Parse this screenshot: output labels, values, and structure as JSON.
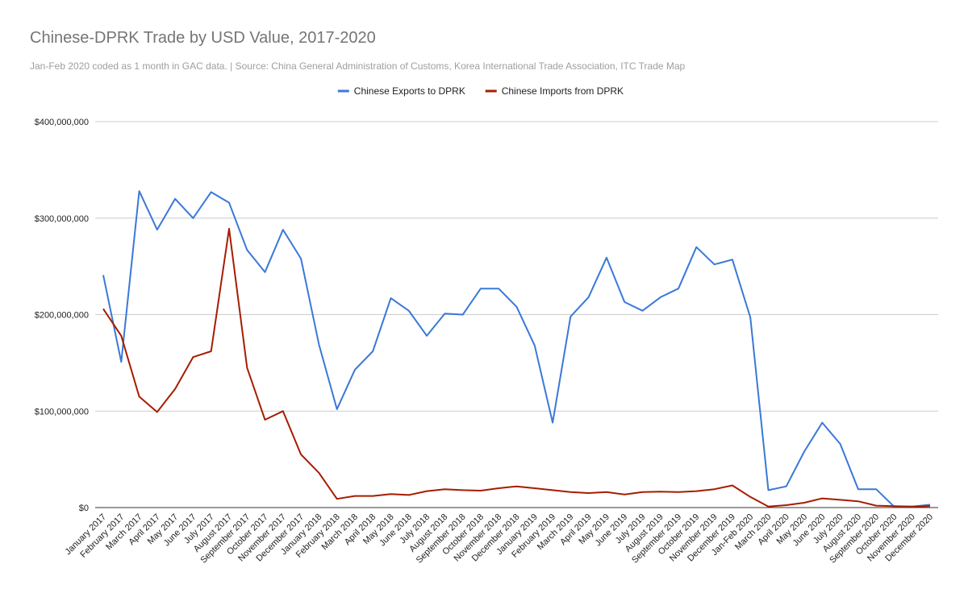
{
  "chart_data": {
    "type": "line",
    "title": "Chinese-DPRK Trade by USD Value, 2017-2020",
    "subtitle": "Jan-Feb 2020 coded as 1 month in GAC data. | Source: China General Administration of Customs, Korea International Trade Association, ITC Trade Map",
    "xlabel": "",
    "ylabel": "",
    "ylim": [
      0,
      400000000
    ],
    "yticks": [
      {
        "value": 0,
        "label": "$0"
      },
      {
        "value": 100000000,
        "label": "$100,000,000"
      },
      {
        "value": 200000000,
        "label": "$200,000,000"
      },
      {
        "value": 300000000,
        "label": "$300,000,000"
      },
      {
        "value": 400000000,
        "label": "$400,000,000"
      }
    ],
    "grid": true,
    "legend_position": "top",
    "categories": [
      "January 2017",
      "February 2017",
      "March 2017",
      "April 2017",
      "May 2017",
      "June 2017",
      "July 2017",
      "August 2017",
      "September 2017",
      "October 2017",
      "November 2017",
      "December 2017",
      "January 2018",
      "February 2018",
      "March 2018",
      "April 2018",
      "May 2018",
      "June 2018",
      "July 2018",
      "August 2018",
      "September 2018",
      "October 2018",
      "November 2018",
      "December 2018",
      "January 2019",
      "February 2019",
      "March 2019",
      "April 2019",
      "May 2019",
      "June 2019",
      "July 2019",
      "August 2019",
      "September 2019",
      "October 2019",
      "November 2019",
      "December 2019",
      "Jan-Feb 2020",
      "March 2020",
      "April 2020",
      "May 2020",
      "June 2020",
      "July 2020",
      "August 2020",
      "September 2020",
      "October 2020",
      "November 2020",
      "December 2020"
    ],
    "series": [
      {
        "name": "Chinese Exports to DPRK",
        "color": "#3a78d8",
        "values": [
          241000000,
          151000000,
          328000000,
          288000000,
          320000000,
          300000000,
          327000000,
          316000000,
          267000000,
          244000000,
          288000000,
          258000000,
          169000000,
          102000000,
          143000000,
          162000000,
          217000000,
          204000000,
          178000000,
          201000000,
          200000000,
          227000000,
          227000000,
          208000000,
          168000000,
          88000000,
          198000000,
          218000000,
          259000000,
          213000000,
          204000000,
          218000000,
          227000000,
          270000000,
          252000000,
          257000000,
          197000000,
          18000000,
          22000000,
          58000000,
          88000000,
          66000000,
          19000000,
          19000000,
          1000000,
          1000000,
          3000000
        ]
      },
      {
        "name": "Chinese Imports from DPRK",
        "color": "#a61c00",
        "values": [
          206000000,
          178000000,
          115000000,
          99000000,
          123000000,
          156000000,
          162000000,
          289000000,
          145000000,
          91000000,
          100000000,
          55000000,
          36000000,
          9000000,
          12000000,
          12000000,
          14000000,
          13000000,
          17000000,
          19000000,
          18000000,
          17500000,
          20000000,
          22000000,
          20000000,
          18000000,
          16000000,
          15000000,
          16000000,
          13500000,
          16000000,
          16500000,
          16000000,
          17000000,
          19000000,
          23000000,
          11000000,
          1000000,
          2500000,
          5000000,
          9500000,
          8000000,
          6500000,
          2000000,
          1500000,
          1000000,
          1500000
        ]
      }
    ]
  }
}
